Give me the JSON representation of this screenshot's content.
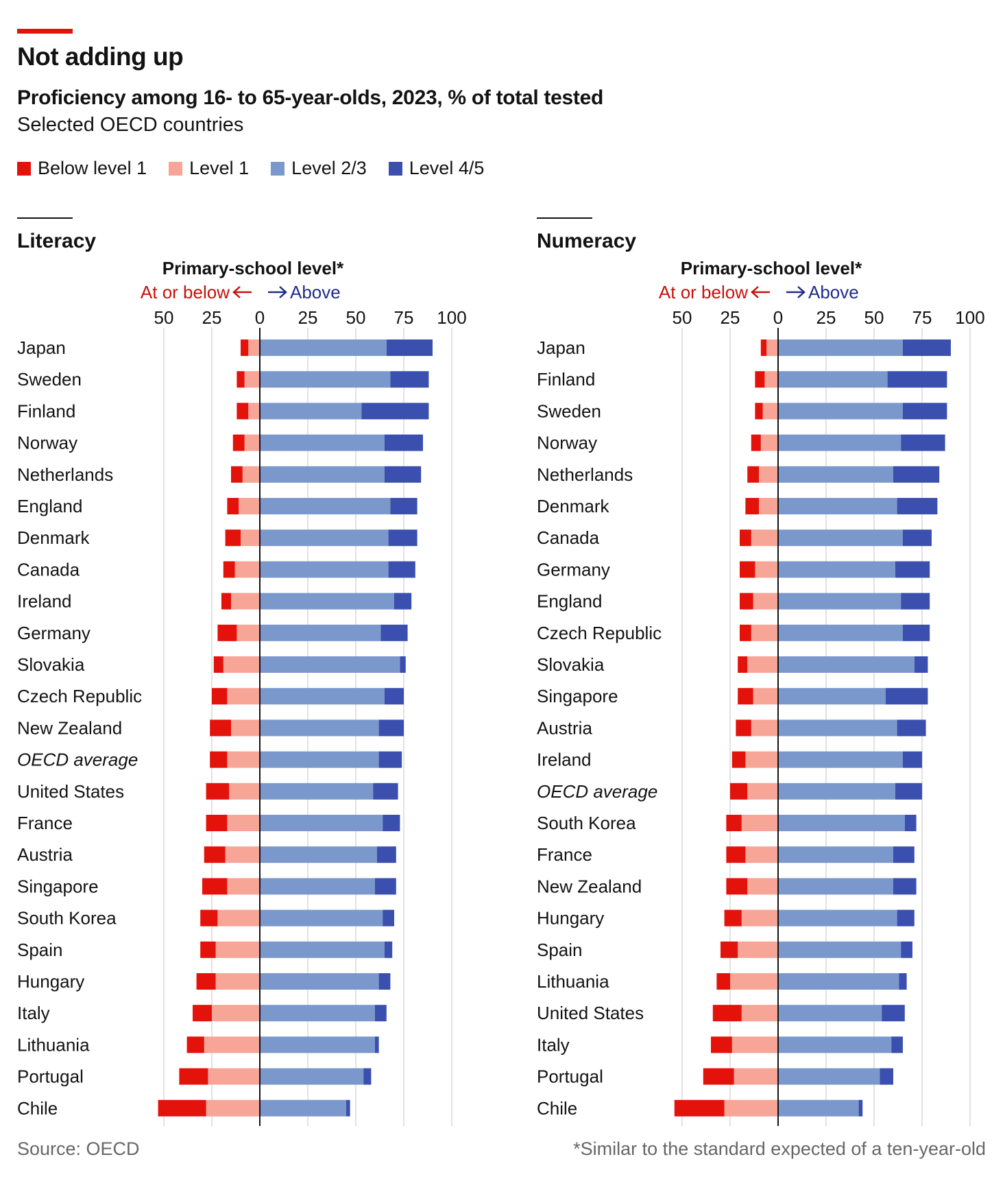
{
  "header": {
    "title": "Not adding up",
    "subtitle": "Proficiency among 16- to 65-year-olds, 2023, % of total tested",
    "subsubtitle": "Selected OECD countries"
  },
  "legend": [
    {
      "label": "Below level 1",
      "color": "#e3120b"
    },
    {
      "label": "Level 1",
      "color": "#f7a597"
    },
    {
      "label": "Level 2/3",
      "color": "#7b98cc"
    },
    {
      "label": "Level 4/5",
      "color": "#3a4fae"
    }
  ],
  "footer": {
    "source": "Source: OECD",
    "footnote": "*Similar to the standard expected of a ten-year-old"
  },
  "chart_data": [
    {
      "type": "bar",
      "title": "Literacy",
      "annotation": "Primary-school level*",
      "left_label": "At or below",
      "right_label": "Above",
      "tick_values": [
        -50,
        -25,
        0,
        25,
        50,
        75,
        100
      ],
      "tick_labels": [
        "50",
        "25",
        "0",
        "25",
        "50",
        "75",
        "100"
      ],
      "xlim": [
        -50,
        100
      ],
      "italic_categories": [
        "OECD average"
      ],
      "categories": [
        "Japan",
        "Sweden",
        "Finland",
        "Norway",
        "Netherlands",
        "England",
        "Denmark",
        "Canada",
        "Ireland",
        "Germany",
        "Slovakia",
        "Czech Republic",
        "New Zealand",
        "OECD average",
        "United States",
        "France",
        "Austria",
        "Singapore",
        "South Korea",
        "Spain",
        "Hungary",
        "Italy",
        "Lithuania",
        "Portugal",
        "Chile"
      ],
      "series": [
        {
          "name": "Below level 1",
          "values": [
            4,
            4,
            6,
            6,
            6,
            6,
            8,
            6,
            5,
            10,
            5,
            8,
            11,
            9,
            12,
            11,
            11,
            13,
            9,
            8,
            10,
            10,
            9,
            15,
            25
          ]
        },
        {
          "name": "Level 1",
          "values": [
            6,
            8,
            6,
            8,
            9,
            11,
            10,
            13,
            15,
            12,
            19,
            17,
            15,
            17,
            16,
            17,
            18,
            17,
            22,
            23,
            23,
            25,
            29,
            27,
            28
          ]
        },
        {
          "name": "Level 2/3",
          "values": [
            66,
            68,
            53,
            65,
            65,
            68,
            67,
            67,
            70,
            63,
            73,
            65,
            62,
            62,
            59,
            64,
            61,
            60,
            64,
            65,
            62,
            60,
            60,
            54,
            45
          ]
        },
        {
          "name": "Level 4/5",
          "values": [
            24,
            20,
            35,
            20,
            19,
            14,
            15,
            14,
            9,
            14,
            3,
            10,
            13,
            12,
            13,
            9,
            10,
            11,
            6,
            4,
            6,
            6,
            2,
            4,
            2
          ]
        }
      ]
    },
    {
      "type": "bar",
      "title": "Numeracy",
      "annotation": "Primary-school level*",
      "left_label": "At or below",
      "right_label": "Above",
      "tick_values": [
        -50,
        -25,
        0,
        25,
        50,
        75,
        100
      ],
      "tick_labels": [
        "50",
        "25",
        "0",
        "25",
        "50",
        "75",
        "100"
      ],
      "xlim": [
        -50,
        100
      ],
      "italic_categories": [
        "OECD average"
      ],
      "categories": [
        "Japan",
        "Finland",
        "Sweden",
        "Norway",
        "Netherlands",
        "Denmark",
        "Canada",
        "Germany",
        "England",
        "Czech Republic",
        "Slovakia",
        "Singapore",
        "Austria",
        "Ireland",
        "OECD average",
        "South Korea",
        "France",
        "New Zealand",
        "Hungary",
        "Spain",
        "Lithuania",
        "United States",
        "Italy",
        "Portugal",
        "Chile"
      ],
      "series": [
        {
          "name": "Below level 1",
          "values": [
            3,
            5,
            4,
            5,
            6,
            7,
            6,
            8,
            7,
            6,
            5,
            8,
            8,
            7,
            9,
            8,
            10,
            11,
            9,
            9,
            7,
            15,
            11,
            16,
            26
          ]
        },
        {
          "name": "Level 1",
          "values": [
            6,
            7,
            8,
            9,
            10,
            10,
            14,
            12,
            13,
            14,
            16,
            13,
            14,
            17,
            16,
            19,
            17,
            16,
            19,
            21,
            25,
            19,
            24,
            23,
            28
          ]
        },
        {
          "name": "Level 2/3",
          "values": [
            65,
            57,
            65,
            64,
            60,
            62,
            65,
            61,
            64,
            65,
            71,
            56,
            62,
            65,
            61,
            66,
            60,
            60,
            62,
            64,
            63,
            54,
            59,
            53,
            42
          ]
        },
        {
          "name": "Level 4/5",
          "values": [
            25,
            31,
            23,
            23,
            24,
            21,
            15,
            18,
            15,
            14,
            7,
            22,
            15,
            10,
            14,
            6,
            11,
            12,
            9,
            6,
            4,
            12,
            6,
            7,
            2
          ]
        }
      ]
    }
  ]
}
